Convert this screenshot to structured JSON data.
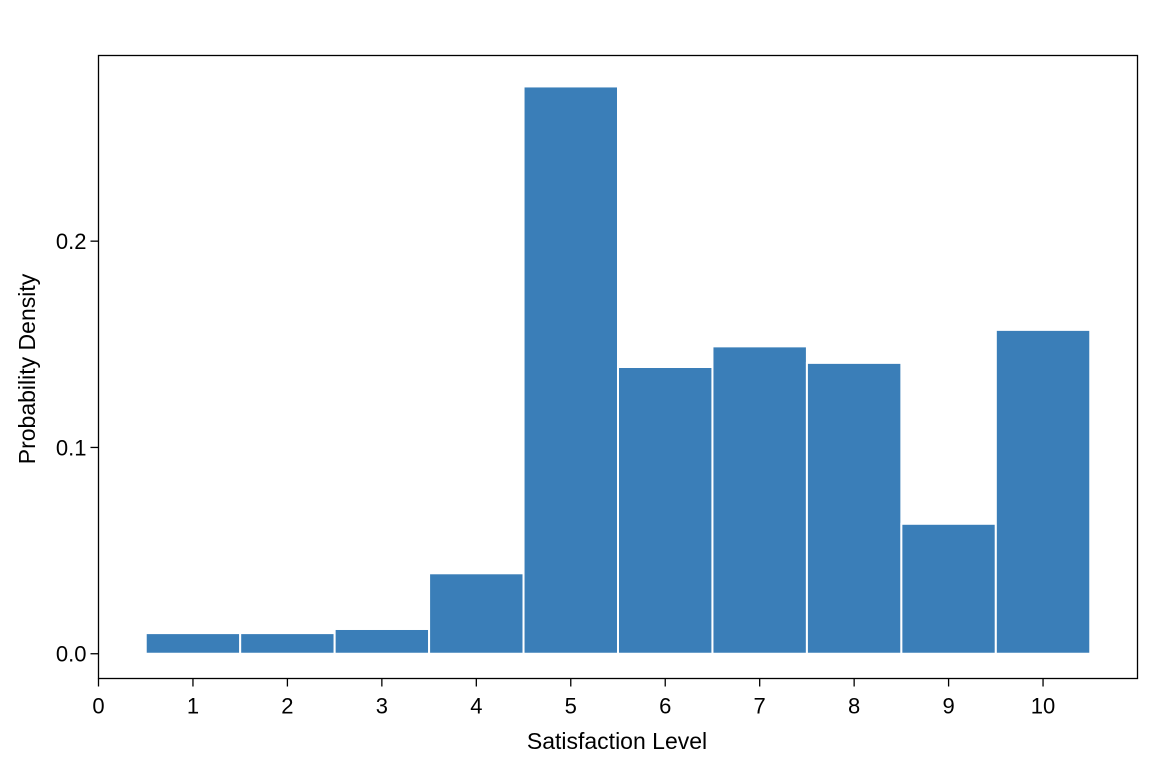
{
  "chart_data": {
    "type": "bar",
    "subtype": "histogram",
    "categories": [
      "1",
      "2",
      "3",
      "4",
      "5",
      "6",
      "7",
      "8",
      "9",
      "10"
    ],
    "x": [
      1,
      2,
      3,
      4,
      5,
      6,
      7,
      8,
      9,
      10
    ],
    "values": [
      0.01,
      0.01,
      0.012,
      0.039,
      0.275,
      0.139,
      0.149,
      0.141,
      0.063,
      0.157
    ],
    "bin_width": 1,
    "title": "",
    "xlabel": "Satisfaction Level",
    "ylabel": "Probability  Density",
    "xlim": [
      0,
      11
    ],
    "ylim": [
      -0.012,
      0.29
    ],
    "x_ticks": [
      "0",
      "1",
      "2",
      "3",
      "4",
      "5",
      "6",
      "7",
      "8",
      "9",
      "10"
    ],
    "y_ticks": [
      "0.0",
      "0.1",
      "0.2"
    ],
    "grid": false,
    "legend": "none",
    "colors": {
      "bar_fill": "#3a7eb8",
      "bar_edge": "#ffffff",
      "axis": "#000000"
    }
  }
}
